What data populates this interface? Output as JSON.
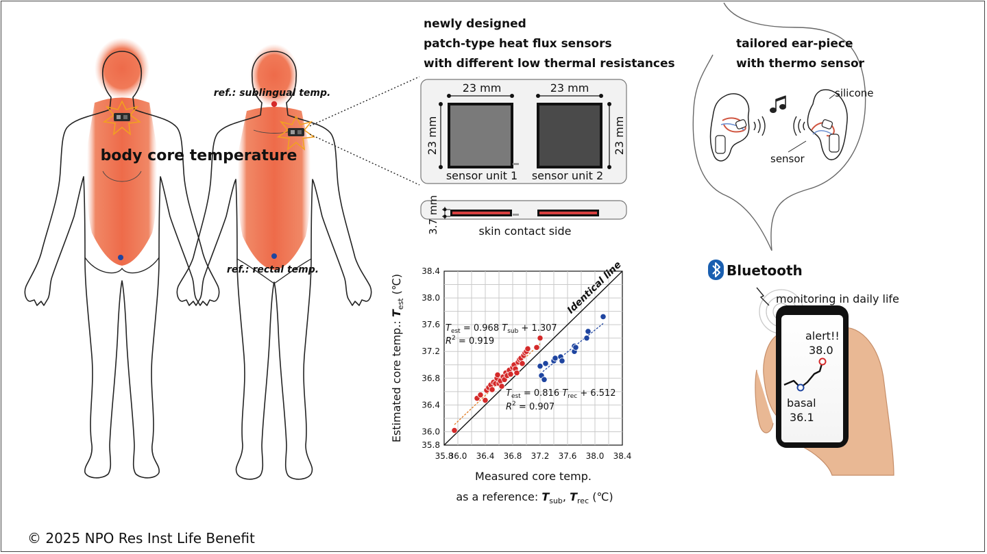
{
  "body_labels": {
    "core_temperature": "body core temperature",
    "sublingual_ref": "ref.: sublingual temp.",
    "rectal_ref": "ref.: rectal temp."
  },
  "sensor_panel": {
    "heading_lines": [
      "newly designed",
      "patch-type heat flux sensors",
      "with different low thermal resistances"
    ],
    "dim_width_1": "23 mm",
    "dim_width_2": "23 mm",
    "dim_height_1": "23 mm",
    "dim_height_2": "23 mm",
    "unit_1_label": "sensor unit 1",
    "unit_2_label": "sensor unit 2",
    "thickness": "3.7 mm",
    "skin_side_label": "skin contact side",
    "unit_1_color": "#7a7a7a",
    "unit_2_color": "#4a4a4a"
  },
  "ear_panel": {
    "heading_lines": [
      "tailored ear-piece",
      "with thermo sensor"
    ],
    "silicone_label": "silicone",
    "sensor_label": "sensor",
    "music_icon": "music-note-icon"
  },
  "phone_panel": {
    "bluetooth_label": "Bluetooth",
    "bluetooth_icon": "bluetooth-icon",
    "monitoring_label": "monitoring in daily life",
    "alert_label": "alert!!",
    "alert_value": "38.0",
    "basal_label": "basal",
    "basal_value": "36.1"
  },
  "chart_data": {
    "type": "scatter",
    "xlabel_line1": "Measured core temp.",
    "xlabel_line2_prefix": "as a reference: ",
    "xlabel_var1": "T",
    "xlabel_sub1": "sub",
    "xlabel_sep": ", ",
    "xlabel_var2": "T",
    "xlabel_sub2": "rec",
    "xlabel_unit": " (℃)",
    "ylabel_prefix": "Estimated core temp.: ",
    "ylabel_var": "T",
    "ylabel_sub": "est",
    "ylabel_unit": " (℃)",
    "xlim": [
      35.8,
      38.4
    ],
    "ylim": [
      35.8,
      38.4
    ],
    "x_ticks": [
      "35.8",
      "36.0",
      "36.4",
      "36.8",
      "37.2",
      "37.6",
      "38.0",
      "38.4"
    ],
    "x_tick_values": [
      35.8,
      36.0,
      36.4,
      36.8,
      37.2,
      37.6,
      38.0,
      38.4
    ],
    "y_ticks": [
      "35.8",
      "36.0",
      "36.4",
      "36.8",
      "37.2",
      "37.6",
      "38.0",
      "38.4"
    ],
    "y_tick_values": [
      35.8,
      36.0,
      36.4,
      36.8,
      37.2,
      37.6,
      38.0,
      38.4
    ],
    "grid": true,
    "identity_label": "Identical line",
    "series": [
      {
        "color": "#d42a2a",
        "fit": {
          "slope": 0.968,
          "intercept": 1.307,
          "x_range": [
            35.95,
            37.2
          ]
        },
        "eq_var": "T",
        "eq_sub": "est",
        "eq_mid": " = 0.968 ",
        "eq_var2": "T",
        "eq_sub2": "sub",
        "eq_tail": " + 1.307",
        "r2_label": "R",
        "r2_value": " = 0.919",
        "points": [
          [
            35.95,
            36.02
          ],
          [
            36.28,
            36.5
          ],
          [
            36.33,
            36.55
          ],
          [
            36.4,
            36.47
          ],
          [
            36.42,
            36.62
          ],
          [
            36.45,
            36.66
          ],
          [
            36.48,
            36.7
          ],
          [
            36.5,
            36.63
          ],
          [
            36.52,
            36.74
          ],
          [
            36.55,
            36.72
          ],
          [
            36.57,
            36.8
          ],
          [
            36.58,
            36.85
          ],
          [
            36.6,
            36.72
          ],
          [
            36.62,
            36.76
          ],
          [
            36.64,
            36.68
          ],
          [
            36.66,
            36.82
          ],
          [
            36.68,
            36.78
          ],
          [
            36.7,
            36.88
          ],
          [
            36.72,
            36.84
          ],
          [
            36.75,
            36.92
          ],
          [
            36.77,
            36.86
          ],
          [
            36.8,
            36.96
          ],
          [
            36.82,
            37.0
          ],
          [
            36.84,
            36.94
          ],
          [
            36.86,
            36.88
          ],
          [
            36.88,
            37.04
          ],
          [
            36.9,
            37.08
          ],
          [
            36.92,
            37.1
          ],
          [
            36.94,
            37.02
          ],
          [
            36.96,
            37.14
          ],
          [
            36.98,
            37.18
          ],
          [
            37.0,
            37.2
          ],
          [
            37.02,
            37.24
          ],
          [
            37.15,
            37.26
          ],
          [
            37.2,
            37.4
          ]
        ]
      },
      {
        "color": "#1f45a0",
        "fit": {
          "slope": 0.816,
          "intercept": 6.512,
          "x_range": [
            37.2,
            38.12
          ]
        },
        "eq_var": "T",
        "eq_sub": "est",
        "eq_mid": " = 0.816 ",
        "eq_var2": "T",
        "eq_sub2": "rec",
        "eq_tail": " + 6.512",
        "r2_label": "R",
        "r2_value": " = 0.907",
        "points": [
          [
            37.2,
            36.98
          ],
          [
            37.22,
            36.84
          ],
          [
            37.26,
            36.78
          ],
          [
            37.28,
            37.02
          ],
          [
            37.4,
            37.06
          ],
          [
            37.42,
            37.1
          ],
          [
            37.5,
            37.12
          ],
          [
            37.52,
            37.06
          ],
          [
            37.7,
            37.2
          ],
          [
            37.7,
            37.28
          ],
          [
            37.72,
            37.26
          ],
          [
            37.88,
            37.4
          ],
          [
            37.9,
            37.5
          ],
          [
            38.12,
            37.72
          ]
        ]
      }
    ]
  },
  "copyright": "© 2025 NPO Res Inst Life Benefit"
}
